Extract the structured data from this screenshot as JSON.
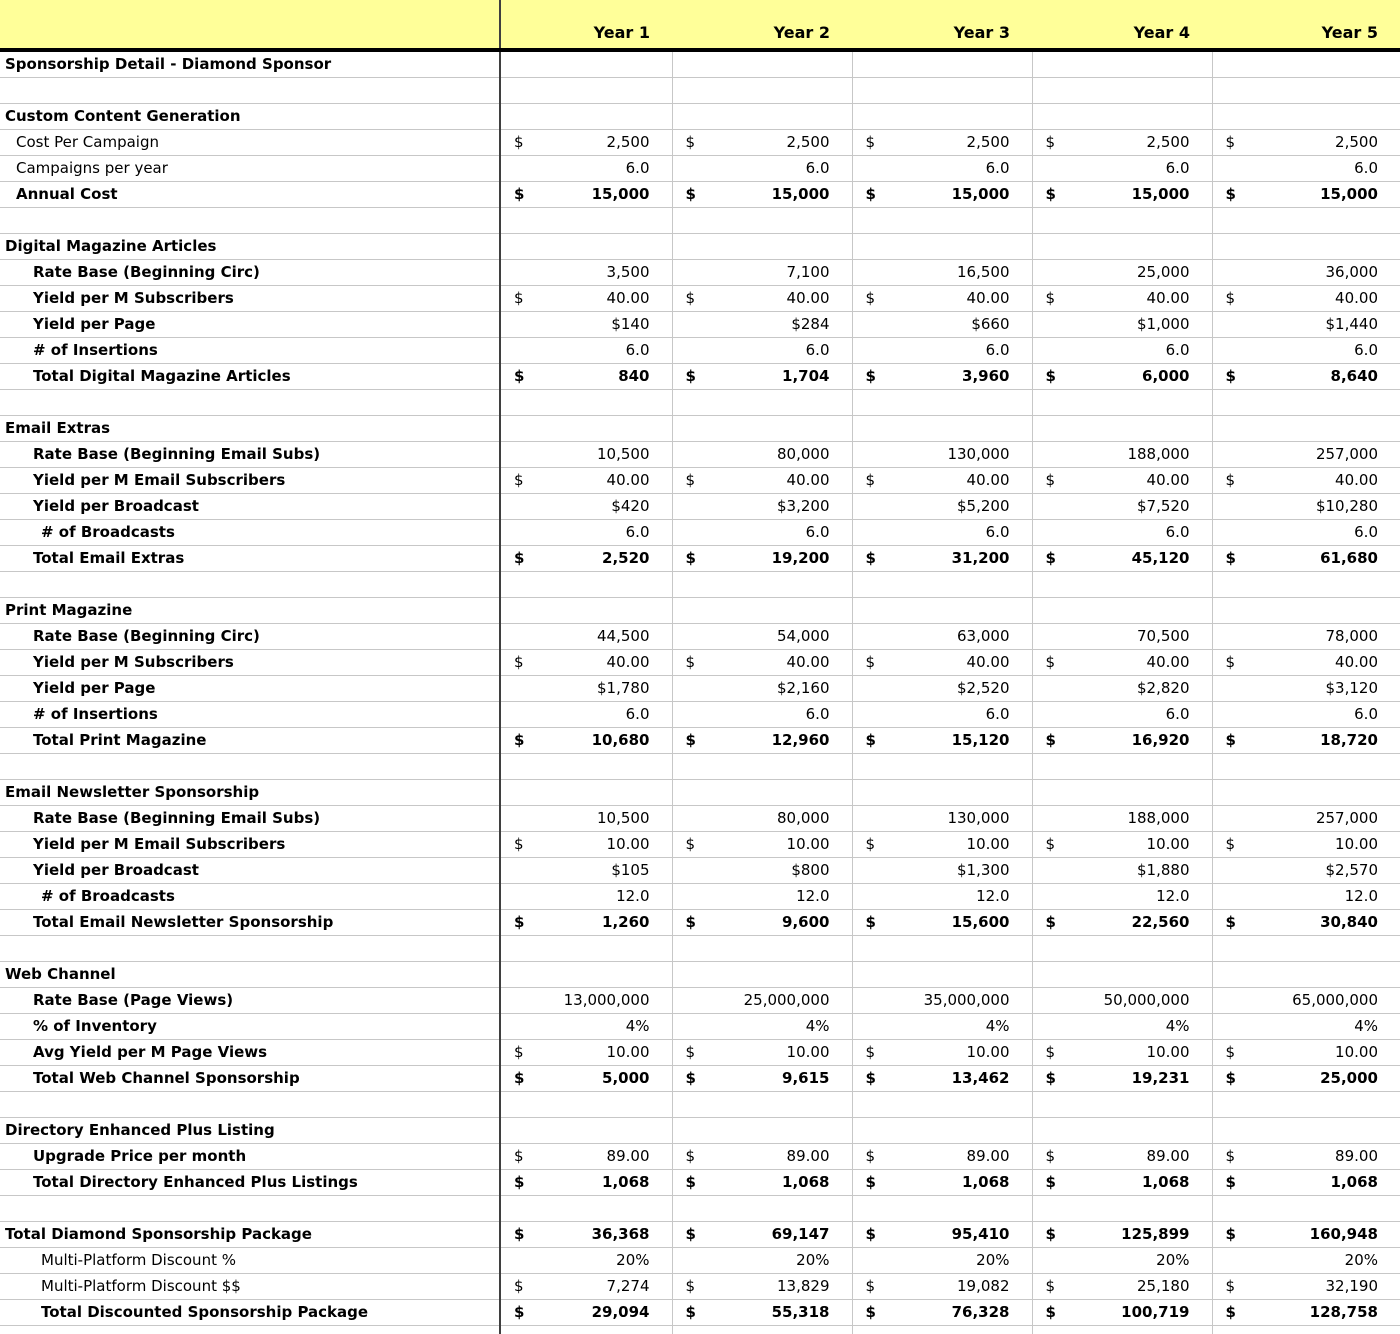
{
  "colors": {
    "header_background": "#FFFF99",
    "grid_line": "#c7c7c7",
    "header_divider": "#000000",
    "label_column_divider": "#3f3f3f",
    "text": "#000000"
  },
  "header": {
    "years": [
      "Year 1",
      "Year 2",
      "Year 3",
      "Year 4",
      "Year 5"
    ]
  },
  "rows": [
    {
      "type": "section",
      "name": "page-title",
      "label": "Sponsorship Detail - Diamond Sponsor",
      "indent": 0,
      "label_bold": true
    },
    {
      "type": "blank"
    },
    {
      "type": "section",
      "name": "section-custom-content-generation",
      "label": "Custom Content Generation",
      "indent": 0,
      "label_bold": true
    },
    {
      "type": "data",
      "label": "Cost Per Campaign",
      "indent": 1,
      "label_bold": false,
      "fmt": "acct",
      "values": [
        "2,500",
        "2,500",
        "2,500",
        "2,500",
        "2,500"
      ],
      "values_bold": false
    },
    {
      "type": "data",
      "label": "Campaigns per year",
      "indent": 1,
      "label_bold": false,
      "fmt": "plain",
      "values": [
        "6.0",
        "6.0",
        "6.0",
        "6.0",
        "6.0"
      ],
      "values_bold": false
    },
    {
      "type": "data",
      "label": "Annual Cost",
      "indent": 1,
      "label_bold": true,
      "fmt": "acct",
      "values": [
        "15,000",
        "15,000",
        "15,000",
        "15,000",
        "15,000"
      ],
      "values_bold": true
    },
    {
      "type": "blank"
    },
    {
      "type": "section",
      "name": "section-digital-magazine-articles",
      "label": "Digital Magazine Articles",
      "indent": 0,
      "label_bold": true
    },
    {
      "type": "data",
      "label": "Rate Base (Beginning Circ)",
      "indent": 2,
      "label_bold": true,
      "fmt": "plain",
      "values": [
        "3,500",
        "7,100",
        "16,500",
        "25,000",
        "36,000"
      ],
      "values_bold": false
    },
    {
      "type": "data",
      "label": "Yield per M Subscribers",
      "indent": 2,
      "label_bold": true,
      "fmt": "acct",
      "values": [
        "40.00",
        "40.00",
        "40.00",
        "40.00",
        "40.00"
      ],
      "values_bold": false
    },
    {
      "type": "data",
      "label": "Yield per Page",
      "indent": 2,
      "label_bold": true,
      "fmt": "plain",
      "values": [
        "$140",
        "$284",
        "$660",
        "$1,000",
        "$1,440"
      ],
      "values_bold": false
    },
    {
      "type": "data",
      "label": "# of Insertions",
      "indent": 2,
      "label_bold": true,
      "fmt": "plain",
      "values": [
        "6.0",
        "6.0",
        "6.0",
        "6.0",
        "6.0"
      ],
      "values_bold": false
    },
    {
      "type": "data",
      "label": "Total Digital Magazine Articles",
      "indent": 2,
      "label_bold": true,
      "fmt": "acct",
      "values": [
        "840",
        "1,704",
        "3,960",
        "6,000",
        "8,640"
      ],
      "values_bold": true
    },
    {
      "type": "blank"
    },
    {
      "type": "section",
      "name": "section-email-extras",
      "label": "Email Extras",
      "indent": 0,
      "label_bold": true
    },
    {
      "type": "data",
      "label": "Rate Base (Beginning Email Subs)",
      "indent": 2,
      "label_bold": true,
      "fmt": "plain",
      "values": [
        "10,500",
        "80,000",
        "130,000",
        "188,000",
        "257,000"
      ],
      "values_bold": false
    },
    {
      "type": "data",
      "label": "Yield per M Email Subscribers",
      "indent": 2,
      "label_bold": true,
      "fmt": "acct",
      "values": [
        "40.00",
        "40.00",
        "40.00",
        "40.00",
        "40.00"
      ],
      "values_bold": false
    },
    {
      "type": "data",
      "label": "Yield per Broadcast",
      "indent": 2,
      "label_bold": true,
      "fmt": "plain",
      "values": [
        "$420",
        "$3,200",
        "$5,200",
        "$7,520",
        "$10,280"
      ],
      "values_bold": false
    },
    {
      "type": "data",
      "label": "# of Broadcasts",
      "indent": 3,
      "label_bold": true,
      "fmt": "plain",
      "values": [
        "6.0",
        "6.0",
        "6.0",
        "6.0",
        "6.0"
      ],
      "values_bold": false
    },
    {
      "type": "data",
      "label": "Total Email Extras",
      "indent": 2,
      "label_bold": true,
      "fmt": "acct",
      "values": [
        "2,520",
        "19,200",
        "31,200",
        "45,120",
        "61,680"
      ],
      "values_bold": true
    },
    {
      "type": "blank"
    },
    {
      "type": "section",
      "name": "section-print-magazine",
      "label": "Print Magazine",
      "indent": 0,
      "label_bold": true
    },
    {
      "type": "data",
      "label": "Rate Base (Beginning Circ)",
      "indent": 2,
      "label_bold": true,
      "fmt": "plain",
      "values": [
        "44,500",
        "54,000",
        "63,000",
        "70,500",
        "78,000"
      ],
      "values_bold": false
    },
    {
      "type": "data",
      "label": "Yield per M Subscribers",
      "indent": 2,
      "label_bold": true,
      "fmt": "acct",
      "values": [
        "40.00",
        "40.00",
        "40.00",
        "40.00",
        "40.00"
      ],
      "values_bold": false
    },
    {
      "type": "data",
      "label": "Yield per Page",
      "indent": 2,
      "label_bold": true,
      "fmt": "plain",
      "values": [
        "$1,780",
        "$2,160",
        "$2,520",
        "$2,820",
        "$3,120"
      ],
      "values_bold": false
    },
    {
      "type": "data",
      "label": "# of Insertions",
      "indent": 2,
      "label_bold": true,
      "fmt": "plain",
      "values": [
        "6.0",
        "6.0",
        "6.0",
        "6.0",
        "6.0"
      ],
      "values_bold": false
    },
    {
      "type": "data",
      "label": "Total Print Magazine",
      "indent": 2,
      "label_bold": true,
      "fmt": "acct",
      "values": [
        "10,680",
        "12,960",
        "15,120",
        "16,920",
        "18,720"
      ],
      "values_bold": true
    },
    {
      "type": "blank"
    },
    {
      "type": "section",
      "name": "section-email-newsletter-sponsorship",
      "label": "Email Newsletter Sponsorship",
      "indent": 0,
      "label_bold": true
    },
    {
      "type": "data",
      "label": "Rate Base (Beginning Email Subs)",
      "indent": 2,
      "label_bold": true,
      "fmt": "plain",
      "values": [
        "10,500",
        "80,000",
        "130,000",
        "188,000",
        "257,000"
      ],
      "values_bold": false
    },
    {
      "type": "data",
      "label": "Yield per M Email Subscribers",
      "indent": 2,
      "label_bold": true,
      "fmt": "acct",
      "values": [
        "10.00",
        "10.00",
        "10.00",
        "10.00",
        "10.00"
      ],
      "values_bold": false
    },
    {
      "type": "data",
      "label": "Yield per Broadcast",
      "indent": 2,
      "label_bold": true,
      "fmt": "plain",
      "values": [
        "$105",
        "$800",
        "$1,300",
        "$1,880",
        "$2,570"
      ],
      "values_bold": false
    },
    {
      "type": "data",
      "label": "# of Broadcasts",
      "indent": 3,
      "label_bold": true,
      "fmt": "plain",
      "values": [
        "12.0",
        "12.0",
        "12.0",
        "12.0",
        "12.0"
      ],
      "values_bold": false
    },
    {
      "type": "data",
      "label": "Total Email Newsletter Sponsorship",
      "indent": 2,
      "label_bold": true,
      "fmt": "acct",
      "values": [
        "1,260",
        "9,600",
        "15,600",
        "22,560",
        "30,840"
      ],
      "values_bold": true
    },
    {
      "type": "blank"
    },
    {
      "type": "section",
      "name": "section-web-channel",
      "label": "Web Channel",
      "indent": 0,
      "label_bold": true
    },
    {
      "type": "data",
      "label": "Rate Base (Page Views)",
      "indent": 2,
      "label_bold": true,
      "fmt": "plain",
      "values": [
        "13,000,000",
        "25,000,000",
        "35,000,000",
        "50,000,000",
        "65,000,000"
      ],
      "values_bold": false
    },
    {
      "type": "data",
      "label": "% of Inventory",
      "indent": 2,
      "label_bold": true,
      "fmt": "plain",
      "values": [
        "4%",
        "4%",
        "4%",
        "4%",
        "4%"
      ],
      "values_bold": false
    },
    {
      "type": "data",
      "label": "Avg Yield per M Page Views",
      "indent": 2,
      "label_bold": true,
      "fmt": "acct",
      "values": [
        "10.00",
        "10.00",
        "10.00",
        "10.00",
        "10.00"
      ],
      "values_bold": false
    },
    {
      "type": "data",
      "label": "Total Web Channel Sponsorship",
      "indent": 2,
      "label_bold": true,
      "fmt": "acct",
      "values": [
        "5,000",
        "9,615",
        "13,462",
        "19,231",
        "25,000"
      ],
      "values_bold": true
    },
    {
      "type": "blank"
    },
    {
      "type": "section",
      "name": "section-directory-enhanced-plus-listing",
      "label": "Directory Enhanced Plus Listing",
      "indent": 0,
      "label_bold": true
    },
    {
      "type": "data",
      "label": "Upgrade Price per month",
      "indent": 2,
      "label_bold": true,
      "fmt": "acct",
      "values": [
        "89.00",
        "89.00",
        "89.00",
        "89.00",
        "89.00"
      ],
      "values_bold": false
    },
    {
      "type": "data",
      "label": "Total Directory Enhanced Plus Listings",
      "indent": 2,
      "label_bold": true,
      "fmt": "acct",
      "values": [
        "1,068",
        "1,068",
        "1,068",
        "1,068",
        "1,068"
      ],
      "values_bold": true
    },
    {
      "type": "blank"
    },
    {
      "type": "data",
      "name": "row-total-diamond-package",
      "label": "Total Diamond Sponsorship Package",
      "indent": 0,
      "label_bold": true,
      "fmt": "acct",
      "values": [
        "36,368",
        "69,147",
        "95,410",
        "125,899",
        "160,948"
      ],
      "values_bold": true
    },
    {
      "type": "data",
      "label": "Multi-Platform Discount %",
      "indent": 3,
      "label_bold": false,
      "fmt": "plain",
      "values": [
        "20%",
        "20%",
        "20%",
        "20%",
        "20%"
      ],
      "values_bold": false
    },
    {
      "type": "data",
      "label": "Multi-Platform Discount $$",
      "indent": 3,
      "label_bold": false,
      "fmt": "acct",
      "values": [
        "7,274",
        "13,829",
        "19,082",
        "25,180",
        "32,190"
      ],
      "values_bold": false
    },
    {
      "type": "data",
      "name": "row-total-discounted-package",
      "label": "Total Discounted Sponsorship Package",
      "indent": 3,
      "label_bold": true,
      "fmt": "acct",
      "values": [
        "29,094",
        "55,318",
        "76,328",
        "100,719",
        "128,758"
      ],
      "values_bold": true
    },
    {
      "type": "stub"
    }
  ]
}
